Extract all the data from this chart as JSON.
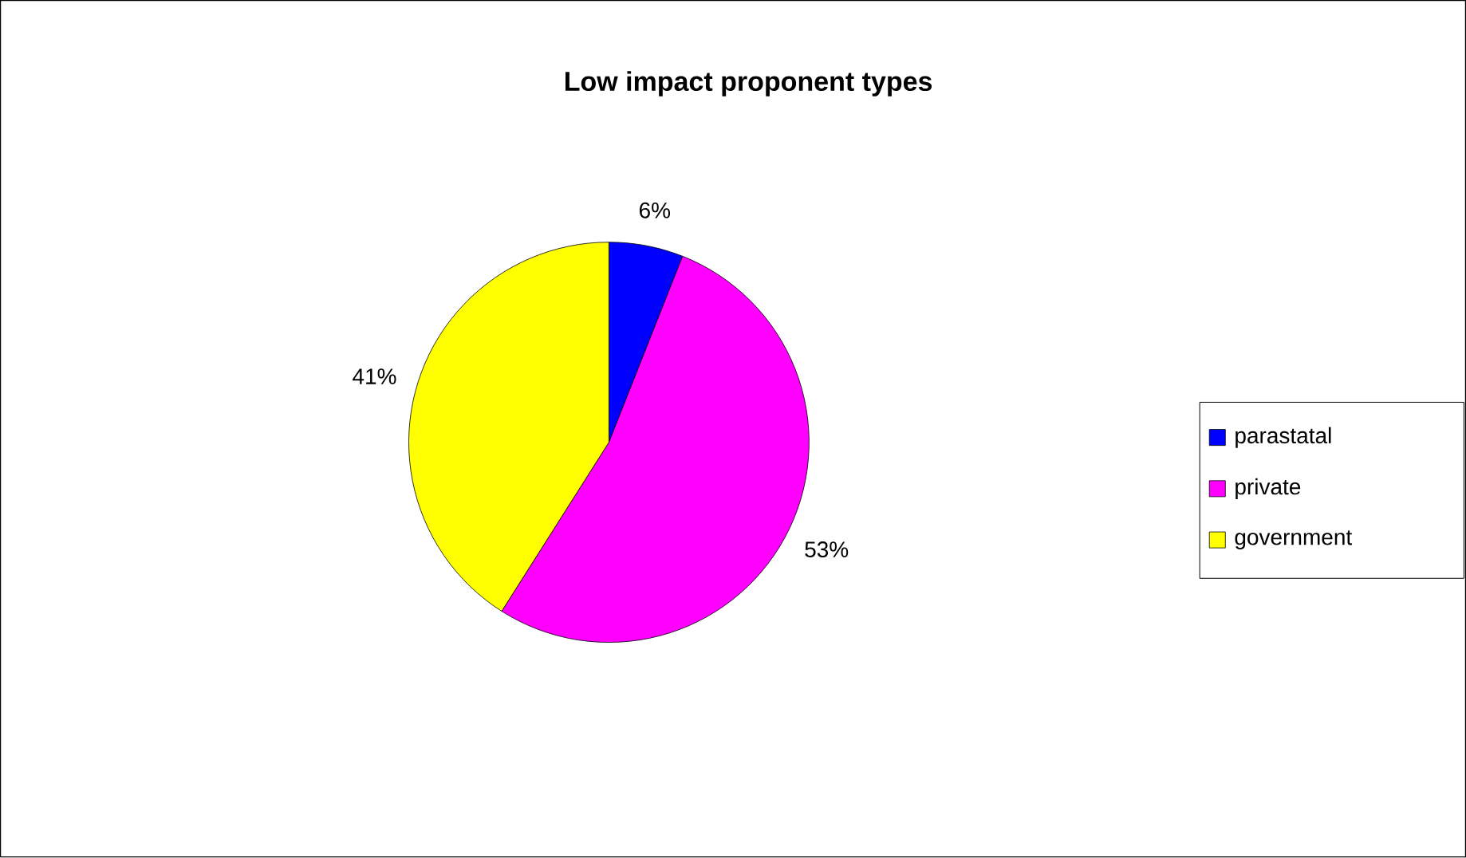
{
  "chart_data": {
    "type": "pie",
    "title": "Low impact proponent types",
    "categories": [
      "parastatal",
      "private",
      "government"
    ],
    "values": [
      6,
      53,
      41
    ],
    "value_labels": [
      "6%",
      "53%",
      "41%"
    ],
    "colors": [
      "#0000ff",
      "#ff00ff",
      "#ffff00"
    ],
    "legend": "right"
  }
}
